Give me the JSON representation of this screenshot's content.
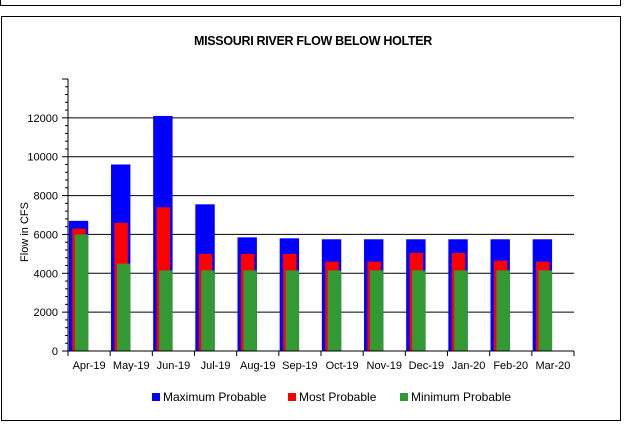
{
  "chart_data": {
    "type": "bar",
    "title": "MISSOURI RIVER FLOW BELOW HOLTER",
    "xlabel": "",
    "ylabel": "Flow in CFS",
    "ylim": [
      0,
      14000
    ],
    "yticks": [
      0,
      2000,
      4000,
      6000,
      8000,
      10000,
      12000
    ],
    "grid": true,
    "legend_position": "bottom",
    "categories": [
      "Apr-19",
      "May-19",
      "Jun-19",
      "Jul-19",
      "Aug-19",
      "Sep-19",
      "Oct-19",
      "Nov-19",
      "Dec-19",
      "Jan-20",
      "Feb-20",
      "Mar-20"
    ],
    "series": [
      {
        "name": "Maximum Probable",
        "color": "#0000ff",
        "values": [
          6700,
          9600,
          12100,
          7550,
          5850,
          5800,
          5750,
          5750,
          5750,
          5750,
          5750,
          5750
        ]
      },
      {
        "name": "Most Probable",
        "color": "#ff0000",
        "values": [
          6300,
          6600,
          7400,
          5000,
          5000,
          5000,
          4600,
          4600,
          5050,
          5050,
          4650,
          4600
        ]
      },
      {
        "name": "Minimum Probable",
        "color": "#339933",
        "values": [
          6000,
          4500,
          4150,
          4150,
          4150,
          4150,
          4150,
          4150,
          4150,
          4150,
          4150,
          4150
        ]
      }
    ]
  }
}
